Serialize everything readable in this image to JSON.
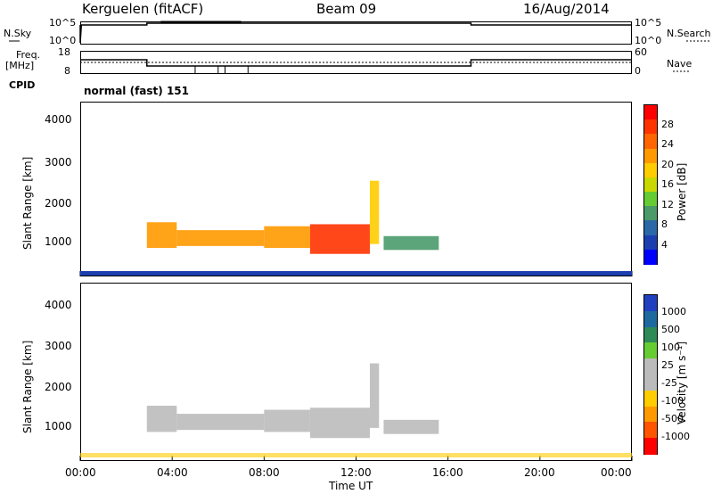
{
  "header": {
    "station": "Kerguelen (fitACF)",
    "beam": "Beam 09",
    "date": "16/Aug/2014"
  },
  "top_panels": {
    "nsky_label": "N.Sky",
    "nsky_ticks": [
      "10^5",
      "10^0"
    ],
    "nsearch_ticks": [
      "10^5",
      "10^0"
    ],
    "nsearch_label": "N.Search",
    "freq_label": "Freq.",
    "freq_unit": "[MHz]",
    "freq_ticks": [
      "18",
      "8"
    ],
    "nave_ticks": [
      "60",
      "0"
    ],
    "nave_label": "Nave",
    "cpid_label": "CPID",
    "cpid_text": "normal (fast) 151"
  },
  "x_axis": {
    "label": "Time UT",
    "ticks": [
      "00:00",
      "04:00",
      "08:00",
      "12:00",
      "16:00",
      "20:00",
      "00:00"
    ]
  },
  "power_panel": {
    "ylabel": "Slant Range [km]",
    "yticks": [
      "4000",
      "3000",
      "2000",
      "1000"
    ],
    "colorbar_label": "Power [dB]",
    "colorbar_ticks": [
      "28",
      "24",
      "20",
      "16",
      "12",
      "8",
      "4"
    ],
    "colors": [
      "#0000ff",
      "#1c3fb0",
      "#2a68a8",
      "#4a9a6a",
      "#66cc33",
      "#c8d800",
      "#ffcc00",
      "#ff9900",
      "#ff6600",
      "#ff3300",
      "#ff0000"
    ]
  },
  "velocity_panel": {
    "ylabel": "Slant Range [km]",
    "yticks": [
      "4000",
      "3000",
      "2000",
      "1000"
    ],
    "colorbar_label": "Velocity [m s⁻¹]",
    "colorbar_ticks": [
      "1000",
      "500",
      "100",
      "25",
      "-25",
      "-100",
      "-500",
      "-1000"
    ],
    "colors": [
      "#2040c0",
      "#1e6aa0",
      "#2e8b57",
      "#66cc33",
      "#bbbbbb",
      "#bbbbbb",
      "#ffcc00",
      "#ff9900",
      "#ff5500",
      "#ff0000"
    ]
  },
  "chart_data": {
    "type": "heatmap",
    "x_range_hours": [
      0,
      24
    ],
    "y_range_km": [
      180,
      4600
    ],
    "echo_bands": [
      {
        "t0": 2.9,
        "t1": 4.2,
        "r0": 900,
        "r1": 1550,
        "power_dB": 22
      },
      {
        "t0": 4.2,
        "t1": 8.0,
        "r0": 950,
        "r1": 1350,
        "power_dB": 20
      },
      {
        "t0": 8.0,
        "t1": 10.0,
        "r0": 900,
        "r1": 1450,
        "power_dB": 22
      },
      {
        "t0": 10.0,
        "t1": 12.6,
        "r0": 750,
        "r1": 1500,
        "power_dB": 26
      },
      {
        "t0": 12.6,
        "t1": 13.0,
        "r0": 1000,
        "r1": 2600,
        "power_dB": 18
      },
      {
        "t0": 13.2,
        "t1": 15.6,
        "r0": 850,
        "r1": 1200,
        "power_dB": 9
      }
    ]
  }
}
